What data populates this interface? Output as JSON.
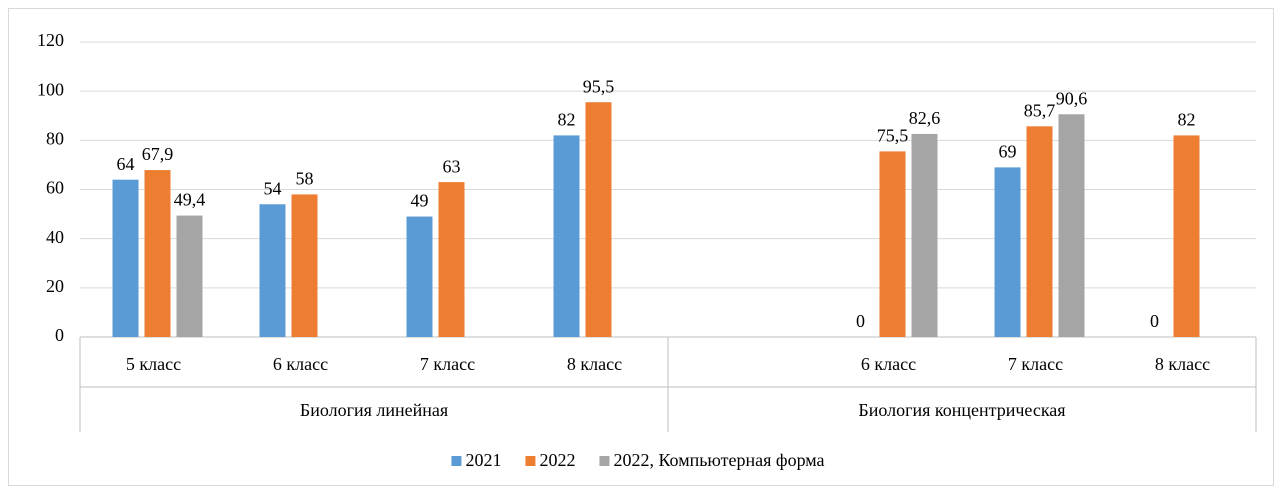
{
  "chart_data": {
    "type": "bar",
    "groups": [
      {
        "name": "Биология линейная",
        "categories": [
          "5 класс",
          "6 класс",
          "7 класс",
          "8 класс"
        ]
      },
      {
        "name": "Биология концентрическая",
        "categories": [
          null,
          "6 класс",
          "7 класс",
          "8 класс"
        ]
      }
    ],
    "series": [
      {
        "name": "2021",
        "color": "#5b9bd5",
        "values": [
          64,
          54,
          49,
          82,
          null,
          0,
          69,
          0
        ],
        "value_labels": [
          "64",
          "54",
          "49",
          "82",
          null,
          "0",
          "69",
          "0"
        ]
      },
      {
        "name": "2022",
        "color": "#ed7d31",
        "values": [
          67.9,
          58,
          63,
          95.5,
          null,
          75.5,
          85.7,
          82
        ],
        "value_labels": [
          "67,9",
          "58",
          "63",
          "95,5",
          null,
          "75,5",
          "85,7",
          "82"
        ]
      },
      {
        "name": "2022, Компьютерная форма",
        "color": "#a5a5a5",
        "values": [
          49.4,
          null,
          null,
          null,
          null,
          82.6,
          90.6,
          null
        ],
        "value_labels": [
          "49,4",
          null,
          null,
          null,
          null,
          "82,6",
          "90,6",
          null
        ]
      }
    ],
    "ylim": [
      0,
      120
    ],
    "yticks": [
      0,
      20,
      40,
      60,
      80,
      100,
      120
    ],
    "grid": true,
    "legend": "bottom"
  }
}
